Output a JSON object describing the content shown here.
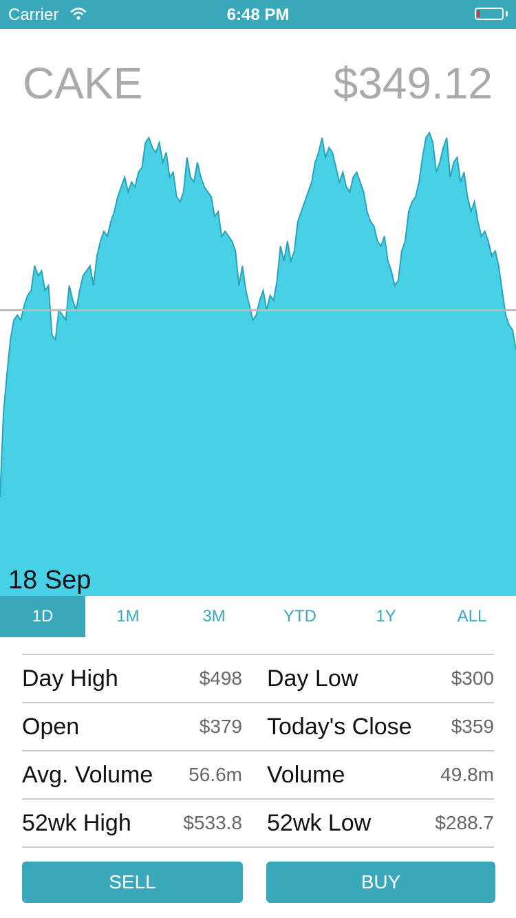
{
  "status_bar": {
    "carrier": "Carrier",
    "time": "6:48 PM",
    "battery_level": 0.08,
    "wifi_icon": "wifi-icon",
    "battery_icon": "battery-icon"
  },
  "header": {
    "ticker": "CAKE",
    "price": "$349.12"
  },
  "colors": {
    "accent": "#3aa8bb",
    "chart_fill": "#48d1e6",
    "chart_line": "#2aa3b8",
    "reference_line": "#bbbbbb"
  },
  "chart": {
    "date_label": "18 Sep"
  },
  "chart_data": {
    "type": "area",
    "ylim": [
      0,
      100
    ],
    "reference": 58,
    "values": [
      20,
      37,
      45,
      52,
      56,
      57,
      56,
      59,
      61,
      62,
      67,
      65,
      66,
      62,
      63,
      53,
      52,
      58,
      57,
      56,
      63,
      60,
      58,
      62,
      65,
      66,
      67,
      63,
      69,
      72,
      74,
      73,
      76,
      78,
      81,
      83,
      85,
      82,
      84,
      83,
      86,
      87,
      92,
      93,
      91,
      90,
      92,
      88,
      90,
      85,
      86,
      81,
      80,
      82,
      89,
      85,
      84,
      88,
      85,
      83,
      82,
      81,
      77,
      78,
      73,
      74,
      73,
      72,
      70,
      63,
      67,
      62,
      59,
      56,
      57,
      60,
      62,
      58,
      61,
      60,
      64,
      71,
      68,
      72,
      68,
      70,
      76,
      78,
      80,
      82,
      84,
      88,
      90,
      93,
      89,
      91,
      90,
      87,
      84,
      86,
      83,
      82,
      85,
      86,
      84,
      82,
      78,
      76,
      75,
      72,
      71,
      73,
      68,
      66,
      63,
      64,
      70,
      72,
      78,
      80,
      81,
      84,
      89,
      93,
      94,
      92,
      86,
      88,
      91,
      93,
      85,
      88,
      89,
      84,
      86,
      81,
      78,
      80,
      76,
      73,
      74,
      72,
      69,
      70,
      67,
      62,
      57,
      55,
      54,
      50
    ]
  },
  "tabs": [
    {
      "label": "1D"
    },
    {
      "label": "1M"
    },
    {
      "label": "3M"
    },
    {
      "label": "YTD"
    },
    {
      "label": "1Y"
    },
    {
      "label": "ALL"
    }
  ],
  "stats": [
    {
      "left_label": "Day High",
      "left_value": "$498",
      "right_label": "Day Low",
      "right_value": "$300"
    },
    {
      "left_label": "Open",
      "left_value": "$379",
      "right_label": "Today's Close",
      "right_value": "$359"
    },
    {
      "left_label": "Avg. Volume",
      "left_value": "56.6m",
      "right_label": "Volume",
      "right_value": "49.8m"
    },
    {
      "left_label": "52wk High",
      "left_value": "$533.8",
      "right_label": "52wk Low",
      "right_value": "$288.7"
    }
  ],
  "actions": {
    "sell_label": "SELL",
    "buy_label": "BUY"
  }
}
